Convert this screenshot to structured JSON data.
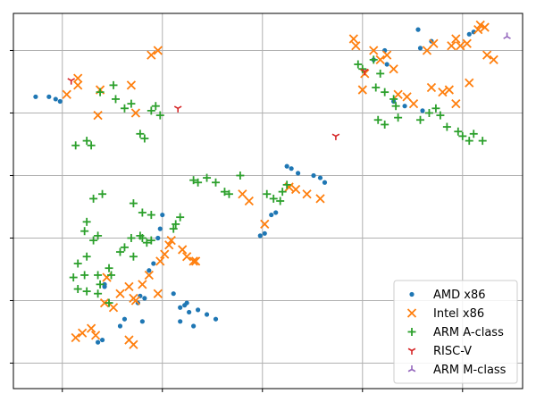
{
  "chart_data": {
    "type": "scatter",
    "title": "",
    "xlabel": "",
    "ylabel": "",
    "xlim": [
      -4.2,
      18.7
    ],
    "ylim": [
      -4.6,
      11.6
    ],
    "x_gridlines": [
      -2,
      2.5,
      7,
      11.5,
      16
    ],
    "y_gridlines": [
      -3.5,
      -0.8,
      1.9,
      4.6,
      7.3,
      10
    ],
    "grid": true,
    "legend_position": "bottom-right",
    "series": [
      {
        "name": "AMD x86",
        "marker": "dot",
        "color": "#1f77b4",
        "points": [
          [
            -3.2,
            8
          ],
          [
            -2.6,
            8
          ],
          [
            -2.3,
            7.9
          ],
          [
            -2.1,
            7.8
          ],
          [
            1.5,
            -0.6
          ],
          [
            1.9,
            0.5
          ],
          [
            1.7,
            -0.7
          ],
          [
            -0.1,
            -0.1
          ],
          [
            -0.1,
            -0.2
          ],
          [
            1.4,
            -0.9
          ],
          [
            -0.4,
            -2.6
          ],
          [
            -0.2,
            -2.5
          ],
          [
            0.8,
            -1.6
          ],
          [
            0.6,
            -1.9
          ],
          [
            1.6,
            -1.7
          ],
          [
            3.3,
            -1.1
          ],
          [
            3.5,
            -1.0
          ],
          [
            3.6,
            -0.9
          ],
          [
            4.1,
            -1.2
          ],
          [
            4.5,
            -1.4
          ],
          [
            4.9,
            -1.6
          ],
          [
            3.9,
            -1.9
          ],
          [
            3.7,
            -1.3
          ],
          [
            2.1,
            0.8
          ],
          [
            2.3,
            1.9
          ],
          [
            2.4,
            2.3
          ],
          [
            2.5,
            2.9
          ],
          [
            3.0,
            -0.5
          ],
          [
            3.3,
            -1.7
          ],
          [
            8.1,
            5.0
          ],
          [
            8.3,
            4.9
          ],
          [
            8.6,
            4.7
          ],
          [
            9.3,
            4.6
          ],
          [
            9.6,
            4.5
          ],
          [
            9.8,
            4.3
          ],
          [
            7.4,
            2.9
          ],
          [
            7.6,
            3.0
          ],
          [
            6.9,
            2.0
          ],
          [
            7.1,
            2.1
          ],
          [
            12.6,
            9.4
          ],
          [
            12.5,
            10.0
          ],
          [
            12.9,
            7.8
          ],
          [
            13.4,
            7.6
          ],
          [
            14.2,
            7.4
          ],
          [
            14.6,
            10.4
          ],
          [
            16.5,
            10.8
          ],
          [
            16.3,
            10.7
          ],
          [
            14.0,
            10.9
          ],
          [
            14.1,
            10.1
          ],
          [
            12.0,
            9.6
          ]
        ]
      },
      {
        "name": "Intel x86",
        "marker": "x",
        "color": "#ff7f0e",
        "points": [
          [
            -1.8,
            8.1
          ],
          [
            -1.3,
            8.8
          ],
          [
            -1.3,
            8.5
          ],
          [
            -0.3,
            8.3
          ],
          [
            1.1,
            8.5
          ],
          [
            1.3,
            7.3
          ],
          [
            -0.4,
            7.2
          ],
          [
            2.0,
            9.8
          ],
          [
            2.3,
            10.0
          ],
          [
            1.0,
            -0.2
          ],
          [
            1.2,
            -0.7
          ],
          [
            1.3,
            -0.8
          ],
          [
            2.4,
            0.9
          ],
          [
            2.6,
            1.2
          ],
          [
            2.8,
            1.6
          ],
          [
            2.9,
            1.8
          ],
          [
            3.4,
            1.4
          ],
          [
            3.6,
            1.1
          ],
          [
            3.9,
            0.9
          ],
          [
            4.0,
            0.9
          ],
          [
            -0.1,
            -0.9
          ],
          [
            0.3,
            -1.1
          ],
          [
            0.6,
            -0.5
          ],
          [
            1.6,
            -0.1
          ],
          [
            1.9,
            0.3
          ],
          [
            2.3,
            -0.5
          ],
          [
            0.0,
            0.2
          ],
          [
            -0.7,
            -2.0
          ],
          [
            -1.1,
            -2.2
          ],
          [
            -0.5,
            -2.3
          ],
          [
            -1.4,
            -2.4
          ],
          [
            1.0,
            -2.5
          ],
          [
            1.2,
            -2.7
          ],
          [
            6.1,
            3.8
          ],
          [
            6.4,
            3.5
          ],
          [
            7.1,
            2.5
          ],
          [
            8.5,
            4.0
          ],
          [
            8.2,
            4.1
          ],
          [
            9.0,
            3.8
          ],
          [
            9.6,
            3.6
          ],
          [
            11.1,
            10.5
          ],
          [
            11.2,
            10.2
          ],
          [
            12.0,
            10.0
          ],
          [
            12.3,
            9.6
          ],
          [
            12.6,
            9.8
          ],
          [
            12.9,
            9.2
          ],
          [
            11.6,
            9.0
          ],
          [
            11.5,
            8.3
          ],
          [
            13.1,
            8.1
          ],
          [
            13.5,
            8.0
          ],
          [
            13.8,
            7.7
          ],
          [
            14.6,
            8.4
          ],
          [
            15.1,
            8.2
          ],
          [
            15.4,
            8.3
          ],
          [
            15.7,
            7.7
          ],
          [
            16.3,
            8.6
          ],
          [
            16.2,
            10.3
          ],
          [
            15.9,
            10.2
          ],
          [
            17.1,
            9.8
          ],
          [
            17.4,
            9.6
          ],
          [
            17.0,
            11.0
          ],
          [
            16.8,
            11.1
          ],
          [
            16.7,
            10.9
          ],
          [
            15.7,
            10.5
          ],
          [
            15.5,
            10.2
          ],
          [
            14.7,
            10.3
          ],
          [
            14.4,
            10.0
          ]
        ]
      },
      {
        "name": "ARM A-class",
        "marker": "plus",
        "color": "#2ca02c",
        "points": [
          [
            -1.3,
            -0.3
          ],
          [
            -0.9,
            -0.4
          ],
          [
            -0.3,
            -0.1
          ],
          [
            0.1,
            0.6
          ],
          [
            0.2,
            0.3
          ],
          [
            0.6,
            1.3
          ],
          [
            0.8,
            1.5
          ],
          [
            1.2,
            1.1
          ],
          [
            -0.4,
            -0.5
          ],
          [
            0.1,
            -0.9
          ],
          [
            1.1,
            1.9
          ],
          [
            1.5,
            2.0
          ],
          [
            1.6,
            1.9
          ],
          [
            1.8,
            1.7
          ],
          [
            2.0,
            1.8
          ],
          [
            3.0,
            2.3
          ],
          [
            3.1,
            2.5
          ],
          [
            3.3,
            2.8
          ],
          [
            -0.3,
            8.2
          ],
          [
            0.3,
            8.5
          ],
          [
            0.4,
            7.9
          ],
          [
            0.8,
            7.5
          ],
          [
            1.1,
            7.7
          ],
          [
            2.2,
            7.6
          ],
          [
            2.4,
            7.2
          ],
          [
            2.0,
            7.4
          ],
          [
            1.5,
            6.4
          ],
          [
            1.7,
            6.2
          ],
          [
            -1.4,
            5.9
          ],
          [
            -0.9,
            6.1
          ],
          [
            -0.7,
            5.9
          ],
          [
            3.9,
            4.4
          ],
          [
            4.1,
            4.3
          ],
          [
            4.5,
            4.5
          ],
          [
            4.9,
            4.3
          ],
          [
            5.3,
            3.9
          ],
          [
            5.5,
            3.8
          ],
          [
            6.0,
            4.6
          ],
          [
            7.2,
            3.8
          ],
          [
            7.5,
            3.6
          ],
          [
            7.8,
            3.5
          ],
          [
            7.9,
            3.9
          ],
          [
            8.1,
            4.2
          ],
          [
            11.3,
            9.4
          ],
          [
            11.5,
            9.2
          ],
          [
            12.0,
            9.6
          ],
          [
            12.3,
            9.0
          ],
          [
            12.1,
            8.4
          ],
          [
            12.5,
            8.2
          ],
          [
            12.9,
            7.9
          ],
          [
            13.0,
            7.6
          ],
          [
            12.2,
            7.0
          ],
          [
            12.5,
            6.8
          ],
          [
            13.1,
            7.1
          ],
          [
            14.1,
            7.0
          ],
          [
            14.5,
            7.3
          ],
          [
            14.8,
            7.5
          ],
          [
            15.0,
            7.2
          ],
          [
            15.3,
            6.7
          ],
          [
            15.8,
            6.5
          ],
          [
            16.0,
            6.3
          ],
          [
            16.3,
            6.1
          ],
          [
            16.5,
            6.4
          ],
          [
            16.9,
            6.1
          ],
          [
            -0.6,
            3.6
          ],
          [
            -0.2,
            3.8
          ],
          [
            1.2,
            3.4
          ],
          [
            1.6,
            3.0
          ],
          [
            2.0,
            2.9
          ],
          [
            -0.9,
            1.1
          ],
          [
            -0.6,
            1.8
          ],
          [
            -0.4,
            2.0
          ],
          [
            -1.0,
            2.2
          ],
          [
            -0.9,
            2.6
          ],
          [
            -1.3,
            0.8
          ],
          [
            -1.5,
            0.2
          ],
          [
            -1.0,
            0.3
          ],
          [
            -0.4,
            0.3
          ]
        ]
      },
      {
        "name": "RISC-V",
        "marker": "tri_down",
        "color": "#d62728",
        "points": [
          [
            3.2,
            7.5
          ],
          [
            10.3,
            6.3
          ],
          [
            11.6,
            9.1
          ],
          [
            -1.6,
            8.7
          ]
        ]
      },
      {
        "name": "ARM M-class",
        "marker": "tri_up",
        "color": "#9467bd",
        "points": [
          [
            18.0,
            10.6
          ]
        ]
      }
    ]
  }
}
